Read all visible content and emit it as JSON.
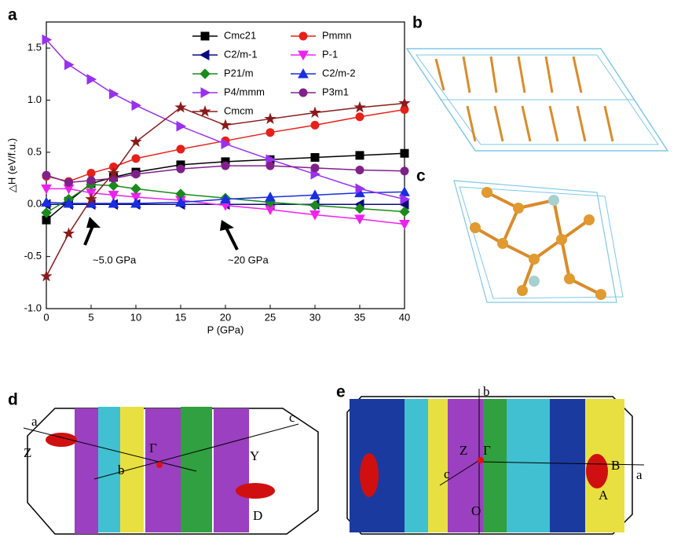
{
  "chart_data": {
    "type": "line",
    "panel_label": "a",
    "x_label": "P (GPa)",
    "y_label": "△H (eV/f.u.)",
    "x": [
      0,
      2.5,
      5,
      7.5,
      10,
      15,
      20,
      25,
      30,
      35,
      40
    ],
    "xlim": [
      0,
      40
    ],
    "xticks": [
      0,
      5,
      10,
      15,
      20,
      25,
      30,
      35,
      40
    ],
    "ylim": [
      -1.0,
      1.75
    ],
    "yticks": [
      {
        "value": -1.0,
        "label": "-1.0"
      },
      -0.5,
      {
        "value": 0.0,
        "label": "0.0"
      },
      0.5,
      {
        "value": 1.0,
        "label": "1.0"
      },
      1.5
    ],
    "series": [
      {
        "name": "Cmc21",
        "color": "#000000",
        "marker": "square",
        "values": [
          -0.15,
          0.03,
          0.2,
          0.26,
          0.31,
          0.38,
          0.41,
          0.43,
          0.45,
          0.47,
          0.49
        ]
      },
      {
        "name": "Pmmn",
        "color": "#e8201a",
        "marker": "circle",
        "values": [
          0.27,
          0.22,
          0.3,
          0.36,
          0.44,
          0.53,
          0.61,
          0.69,
          0.76,
          0.84,
          0.91
        ]
      },
      {
        "name": "C2/m-1",
        "color": "#0a0a80",
        "marker": "left",
        "values": [
          0.0,
          0.0,
          0.0,
          0.0,
          0.0,
          0.0,
          0.0,
          0.0,
          0.0,
          0.0,
          0.0
        ]
      },
      {
        "name": "P-1",
        "color": "#f020f0",
        "marker": "down",
        "values": [
          0.15,
          0.15,
          0.11,
          0.09,
          0.07,
          0.04,
          -0.01,
          -0.05,
          -0.1,
          -0.14,
          -0.19
        ]
      },
      {
        "name": "P21/m",
        "color": "#1a8a1a",
        "marker": "diamond",
        "values": [
          -0.08,
          0.05,
          0.19,
          0.18,
          0.15,
          0.1,
          0.06,
          0.02,
          -0.01,
          -0.04,
          -0.07
        ]
      },
      {
        "name": "C2/m-2",
        "color": "#1a2ee0",
        "marker": "up",
        "values": [
          0.02,
          0.01,
          0.01,
          0.01,
          0.01,
          0.02,
          0.05,
          0.07,
          0.09,
          0.11,
          0.12
        ]
      },
      {
        "name": "P4/mmm",
        "color": "#9a30f0",
        "marker": "right",
        "values": [
          1.58,
          1.34,
          1.2,
          1.06,
          0.95,
          0.75,
          0.58,
          0.43,
          0.29,
          0.15,
          0.05
        ]
      },
      {
        "name": "P3m1",
        "color": "#80208a",
        "marker": "circle",
        "values": [
          0.28,
          0.21,
          0.23,
          0.25,
          0.29,
          0.34,
          0.37,
          0.37,
          0.35,
          0.33,
          0.32
        ]
      },
      {
        "name": "Cmcm",
        "color": "#8a1a1a",
        "marker": "star",
        "values": [
          -0.69,
          -0.28,
          0.05,
          0.3,
          0.6,
          0.93,
          0.76,
          0.82,
          0.88,
          0.93,
          0.97
        ]
      }
    ],
    "annotations": [
      "~5.0 GPa",
      "~20 GPa"
    ]
  },
  "figure_panels": [
    {
      "label": "b"
    },
    {
      "label": "c"
    },
    {
      "label": "d",
      "labels": [
        "a",
        "Z",
        "Γ",
        "b",
        "c",
        "Y",
        "D"
      ]
    },
    {
      "label": "e",
      "labels": [
        "b",
        "Z",
        "Γ",
        "c",
        "a",
        "B",
        "A",
        "O"
      ]
    }
  ]
}
